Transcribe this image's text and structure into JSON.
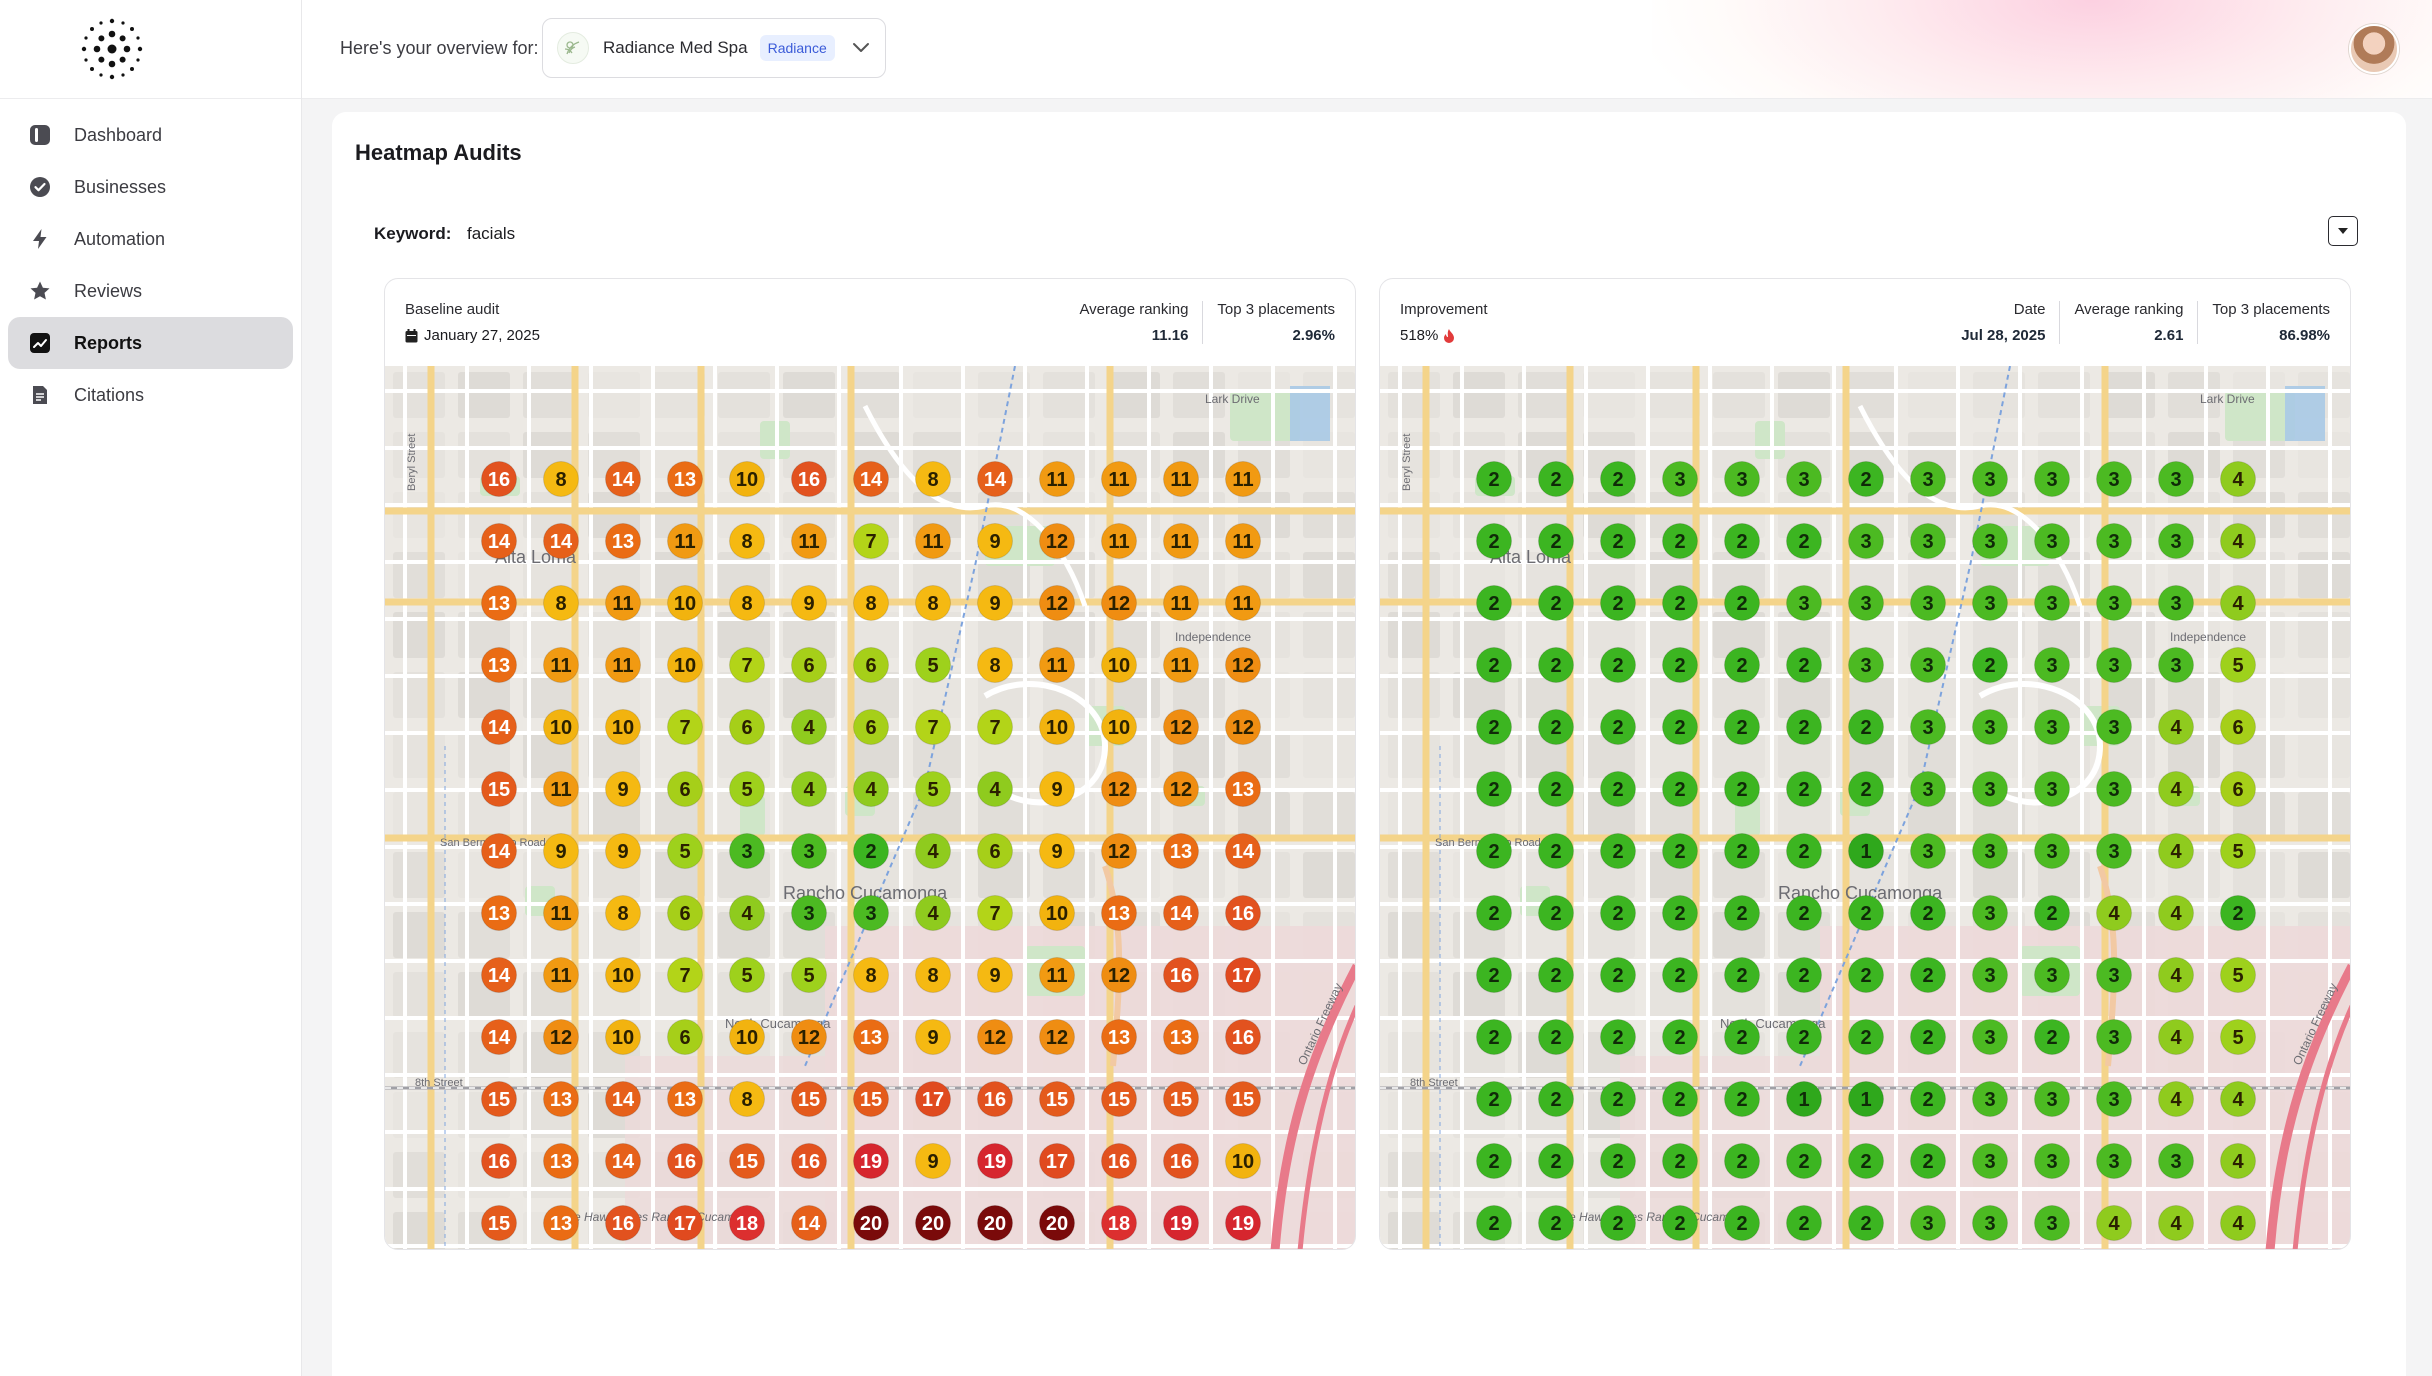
{
  "header": {
    "overview_label": "Here's your overview for:",
    "business_name": "Radiance Med Spa",
    "business_tag": "Radiance"
  },
  "sidebar": {
    "items": [
      {
        "label": "Dashboard",
        "icon": "dashboard-icon"
      },
      {
        "label": "Businesses",
        "icon": "check-badge-icon"
      },
      {
        "label": "Automation",
        "icon": "bolt-icon"
      },
      {
        "label": "Reviews",
        "icon": "star-icon"
      },
      {
        "label": "Reports",
        "icon": "chart-icon",
        "active": true
      },
      {
        "label": "Citations",
        "icon": "document-icon"
      }
    ]
  },
  "main": {
    "title": "Heatmap Audits",
    "keyword_label": "Keyword:",
    "keyword": "facials"
  },
  "baseline": {
    "caption": "Baseline audit",
    "date": "January 27, 2025",
    "avg_label": "Average ranking",
    "avg_value": "11.16",
    "top3_label": "Top 3 placements",
    "top3_value": "2.96%",
    "grid": [
      [
        16,
        8,
        14,
        13,
        10,
        16,
        14,
        8,
        14,
        11,
        11,
        11,
        11
      ],
      [
        14,
        14,
        13,
        11,
        8,
        11,
        7,
        11,
        9,
        12,
        11,
        11,
        11
      ],
      [
        13,
        8,
        11,
        10,
        8,
        9,
        8,
        8,
        9,
        12,
        12,
        11,
        11
      ],
      [
        13,
        11,
        11,
        10,
        7,
        6,
        6,
        5,
        8,
        11,
        10,
        11,
        12
      ],
      [
        14,
        10,
        10,
        7,
        6,
        4,
        6,
        7,
        7,
        10,
        10,
        12,
        12
      ],
      [
        15,
        11,
        9,
        6,
        5,
        4,
        4,
        5,
        4,
        9,
        12,
        12,
        13
      ],
      [
        14,
        9,
        9,
        5,
        3,
        3,
        2,
        4,
        6,
        9,
        12,
        13,
        14
      ],
      [
        13,
        11,
        8,
        6,
        4,
        3,
        3,
        4,
        7,
        10,
        13,
        14,
        16
      ],
      [
        14,
        11,
        10,
        7,
        5,
        5,
        8,
        8,
        9,
        11,
        12,
        16,
        17
      ],
      [
        14,
        12,
        10,
        6,
        10,
        12,
        13,
        9,
        12,
        12,
        13,
        13,
        16
      ],
      [
        15,
        13,
        14,
        13,
        8,
        15,
        15,
        17,
        16,
        15,
        15,
        15,
        15
      ],
      [
        16,
        13,
        14,
        16,
        15,
        16,
        19,
        9,
        19,
        17,
        16,
        16,
        10
      ],
      [
        15,
        13,
        16,
        17,
        18,
        14,
        20,
        20,
        20,
        20,
        18,
        19,
        19
      ]
    ]
  },
  "current": {
    "caption": "Improvement",
    "improvement": "518%",
    "date_label": "Date",
    "date_value": "Jul 28, 2025",
    "avg_label": "Average ranking",
    "avg_value": "2.61",
    "top3_label": "Top 3 placements",
    "top3_value": "86.98%",
    "grid": [
      [
        2,
        2,
        2,
        3,
        3,
        3,
        2,
        3,
        3,
        3,
        3,
        3,
        4
      ],
      [
        2,
        2,
        2,
        2,
        2,
        2,
        3,
        3,
        3,
        3,
        3,
        3,
        4
      ],
      [
        2,
        2,
        2,
        2,
        2,
        3,
        3,
        3,
        3,
        3,
        3,
        3,
        4
      ],
      [
        2,
        2,
        2,
        2,
        2,
        2,
        3,
        3,
        2,
        3,
        3,
        3,
        5
      ],
      [
        2,
        2,
        2,
        2,
        2,
        2,
        2,
        3,
        3,
        3,
        3,
        4,
        6
      ],
      [
        2,
        2,
        2,
        2,
        2,
        2,
        2,
        3,
        3,
        3,
        3,
        4,
        6
      ],
      [
        2,
        2,
        2,
        2,
        2,
        2,
        1,
        3,
        3,
        3,
        3,
        4,
        5
      ],
      [
        2,
        2,
        2,
        2,
        2,
        2,
        2,
        2,
        3,
        2,
        4,
        4,
        2
      ],
      [
        2,
        2,
        2,
        2,
        2,
        2,
        2,
        2,
        3,
        3,
        3,
        4,
        5
      ],
      [
        2,
        2,
        2,
        2,
        2,
        2,
        2,
        2,
        3,
        2,
        3,
        4,
        5
      ],
      [
        2,
        2,
        2,
        2,
        2,
        1,
        1,
        2,
        3,
        3,
        3,
        4,
        4
      ],
      [
        2,
        2,
        2,
        2,
        2,
        2,
        2,
        2,
        3,
        3,
        3,
        3,
        4
      ],
      [
        2,
        2,
        2,
        2,
        2,
        2,
        2,
        3,
        3,
        3,
        4,
        4,
        4
      ]
    ]
  },
  "map_labels": {
    "alta_loma": "Alta Loma",
    "rancho": "Rancho Cucamonga",
    "north_cucamonga": "North Cucamonga",
    "lark_drive": "Lark Drive",
    "eighth_street": "8th Street",
    "hawthornes": "The Hawthornes Rancho Cucamonga",
    "independence": "Independence",
    "ontario_freeway": "Ontario Freeway",
    "san_bernardino": "San Bernardino Road",
    "beryl": "Beryl Street"
  },
  "colors": {
    "accent_active_bg": "#dcdcdf",
    "rank_best": "#3cb521",
    "rank_worst": "#7a0a0a"
  }
}
